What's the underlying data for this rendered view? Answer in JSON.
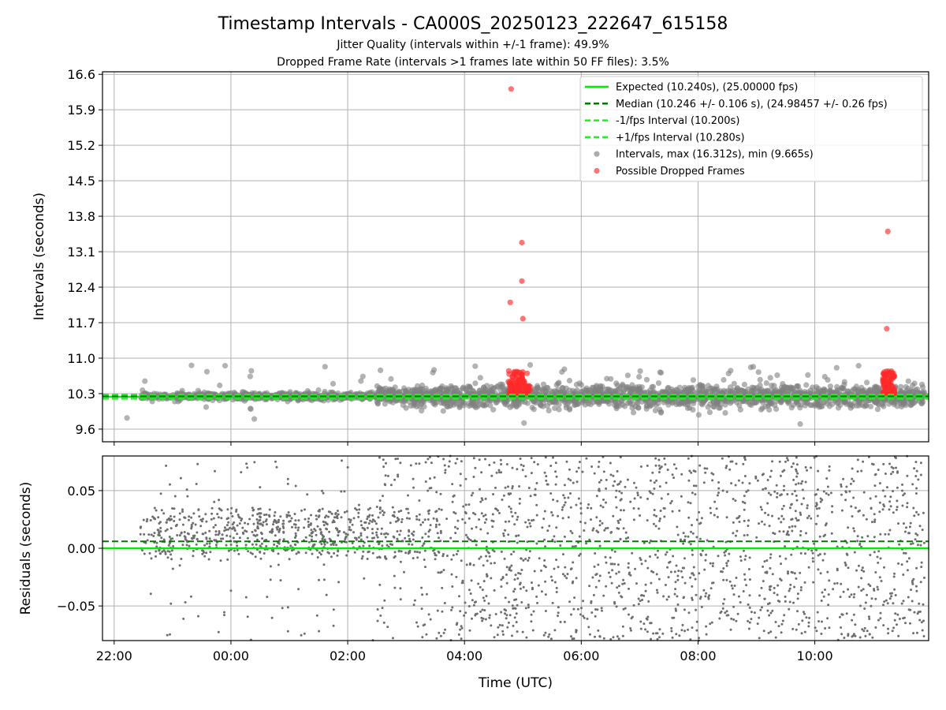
{
  "title": "Timestamp Intervals - CA000S_20250123_222647_615158",
  "subtitle_1": "Jitter Quality (intervals within +/-1 frame): 49.9%",
  "subtitle_2": "Dropped Frame Rate (intervals >1 frames late within 50 FF files): 3.5%",
  "colors": {
    "expected": "#00ee00",
    "median": "#007a00",
    "interval_band": "#22ee22",
    "points": "#808080",
    "dropped": "#ff2a2a",
    "grid": "#b0b0b0"
  },
  "chart_data": [
    {
      "type": "scatter",
      "panel": "top",
      "ylabel": "Intervals (seconds)",
      "y_ticks": [
        "9.6",
        "10.3",
        "11.0",
        "11.7",
        "12.4",
        "13.1",
        "13.8",
        "14.5",
        "15.2",
        "15.9",
        "16.6"
      ],
      "ylim": [
        9.35,
        16.65
      ],
      "xlim_hours": [
        -2.2,
        11.95
      ],
      "x_ticks": [
        "22:00",
        "00:00",
        "02:00",
        "04:00",
        "06:00",
        "08:00",
        "10:00"
      ],
      "grid": true,
      "legend_position": "top-right",
      "reference_lines": [
        {
          "name": "Expected (10.240s), (25.00000 fps)",
          "y": 10.24,
          "style": "solid"
        },
        {
          "name": "Median (10.246 +/- 0.106 s), (24.98457 +/- 0.26 fps)",
          "y": 10.246,
          "style": "dashed"
        },
        {
          "name": "-1/fps Interval (10.200s)",
          "y": 10.2,
          "style": "dashed"
        },
        {
          "name": "+1/fps Interval (10.280s)",
          "y": 10.28,
          "style": "dashed"
        }
      ],
      "series": [
        {
          "name": "Intervals, max (16.312s), min (9.665s)",
          "max": 16.312,
          "min": 9.665,
          "x_start": "22:27",
          "x_end": "11:53"
        },
        {
          "name": "Possible Dropped Frames",
          "outliers": [
            {
              "x": "04:48",
              "y": 16.31
            },
            {
              "x": "04:47",
              "y": 12.1
            },
            {
              "x": "04:59",
              "y": 13.28
            },
            {
              "x": "04:59",
              "y": 12.52
            },
            {
              "x": "05:00",
              "y": 11.78
            },
            {
              "x": "11:15",
              "y": 13.5
            },
            {
              "x": "11:14",
              "y": 11.58
            }
          ],
          "clusters": [
            {
              "x_from": "04:45",
              "x_to": "05:07",
              "y_from": 10.3,
              "y_to": 10.75
            },
            {
              "x_from": "11:10",
              "x_to": "11:22",
              "y_from": 10.3,
              "y_to": 10.75
            }
          ]
        }
      ]
    },
    {
      "type": "scatter",
      "panel": "bottom",
      "ylabel": "Residuals (seconds)",
      "xlabel": "Time (UTC)",
      "y_ticks": [
        "−0.05",
        "0.00",
        "0.05"
      ],
      "ylim": [
        -0.08,
        0.08
      ],
      "x_ticks": [
        "22:00",
        "00:00",
        "02:00",
        "04:00",
        "06:00",
        "08:00",
        "10:00"
      ],
      "grid": true,
      "reference_lines": [
        {
          "name": "Expected",
          "y": 0.0,
          "style": "solid"
        },
        {
          "name": "Median",
          "y": 0.006,
          "style": "dashed"
        }
      ],
      "series": [
        {
          "name": "Residuals",
          "early_band": [
            -0.01,
            0.035
          ],
          "late_spread": [
            -0.08,
            0.08
          ]
        }
      ]
    }
  ]
}
